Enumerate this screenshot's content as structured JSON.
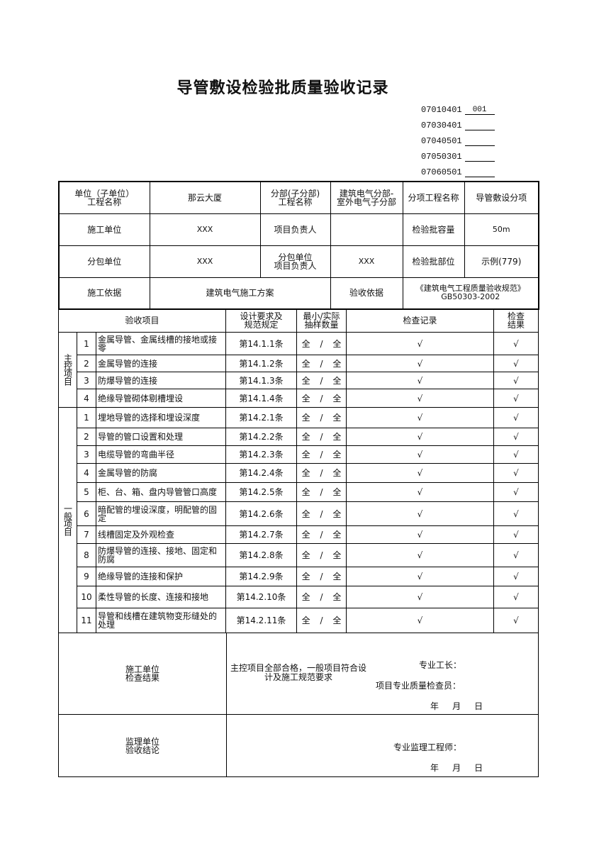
{
  "title": "导管敷设检验批质量验收记录",
  "codes": [
    {
      "code": "07010401",
      "value": "001"
    },
    {
      "code": "07030401",
      "value": ""
    },
    {
      "code": "07040501",
      "value": ""
    },
    {
      "code": "07050301",
      "value": ""
    },
    {
      "code": "07060501",
      "value": ""
    }
  ],
  "info": {
    "unit_label": "单位（子单位）\n工程名称",
    "unit_value": "那云大厦",
    "division_label": "分部(子分部)\n工程名称",
    "division_value": "建筑电气分部-\n室外电气子分部",
    "subitem_label": "分项工程名称",
    "subitem_value": "导管敷设分项",
    "contractor_label": "施工单位",
    "contractor_value": "XXX",
    "pm_label": "项目负责人",
    "pm_value": "",
    "capacity_label": "检验批容量",
    "capacity_value": "50m",
    "subcontractor_label": "分包单位",
    "subcontractor_value": "XXX",
    "sub_pm_label": "分包单位\n项目负责人",
    "sub_pm_value": "XXX",
    "location_label": "检验批部位",
    "location_value": "示例(779)",
    "basis_label": "施工依据",
    "basis_value": "建筑电气施工方案",
    "acceptance_basis_label": "验收依据",
    "acceptance_basis_value": "《建筑电气工程质量验收规范》\nGB50303-2002"
  },
  "headers": {
    "item": "验收项目",
    "design": "设计要求及\n规范规定",
    "sample": "最小/实际\n抽样数量",
    "record": "检查记录",
    "result": "检查\n结果"
  },
  "main_group": "主控项目",
  "general_group": "一般项目",
  "main_items": [
    {
      "no": "1",
      "name": "金属导管、金属线槽的接地或接零",
      "clause": "第14.1.1条",
      "sample": "全 / 全",
      "record": "√",
      "result": "√"
    },
    {
      "no": "2",
      "name": "金属导管的连接",
      "clause": "第14.1.2条",
      "sample": "全 / 全",
      "record": "√",
      "result": "√"
    },
    {
      "no": "3",
      "name": "防爆导管的连接",
      "clause": "第14.1.3条",
      "sample": "全 / 全",
      "record": "√",
      "result": "√"
    },
    {
      "no": "4",
      "name": "绝缘导管砌体剔槽埋设",
      "clause": "第14.1.4条",
      "sample": "全 / 全",
      "record": "√",
      "result": "√"
    }
  ],
  "general_items": [
    {
      "no": "1",
      "name": "埋地导管的选择和埋设深度",
      "clause": "第14.2.1条",
      "sample": "全 / 全",
      "record": "√",
      "result": "√"
    },
    {
      "no": "2",
      "name": "导管的管口设置和处理",
      "clause": "第14.2.2条",
      "sample": "全 / 全",
      "record": "√",
      "result": "√"
    },
    {
      "no": "3",
      "name": "电缆导管的弯曲半径",
      "clause": "第14.2.3条",
      "sample": "全 / 全",
      "record": "√",
      "result": "√"
    },
    {
      "no": "4",
      "name": "金属导管的防腐",
      "clause": "第14.2.4条",
      "sample": "全 / 全",
      "record": "√",
      "result": "√"
    },
    {
      "no": "5",
      "name": "柜、台、箱、盘内导管管口高度",
      "clause": "第14.2.5条",
      "sample": "全 / 全",
      "record": "√",
      "result": "√"
    },
    {
      "no": "6",
      "name": "暗配管的埋设深度，明配管的固定",
      "clause": "第14.2.6条",
      "sample": "全 / 全",
      "record": "√",
      "result": "√"
    },
    {
      "no": "7",
      "name": "线槽固定及外观检查",
      "clause": "第14.2.7条",
      "sample": "全 / 全",
      "record": "√",
      "result": "√"
    },
    {
      "no": "8",
      "name": "防爆导管的连接、接地、固定和防腐",
      "clause": "第14.2.8条",
      "sample": "全 / 全",
      "record": "√",
      "result": "√"
    },
    {
      "no": "9",
      "name": "绝缘导管的连接和保护",
      "clause": "第14.2.9条",
      "sample": "全 / 全",
      "record": "√",
      "result": "√"
    },
    {
      "no": "10",
      "name": "柔性导管的长度、连接和接地",
      "clause": "第14.2.10条",
      "sample": "全 / 全",
      "record": "√",
      "result": "√"
    },
    {
      "no": "11",
      "name": "导管和线槽在建筑物变形缝处的处理",
      "clause": "第14.2.11条",
      "sample": "全 / 全",
      "record": "√",
      "result": "√"
    }
  ],
  "contractor_check": {
    "label": "施工单位\n检查结果",
    "conclusion": "主控项目全部合格，一般项目符合设\n计及施工规范要求",
    "foreman": "专业工长：",
    "inspector": "项目专业质量检查员：",
    "date": "年     月     日"
  },
  "supervisor_check": {
    "label": "监理单位\n验收结论",
    "engineer": "专业监理工程师：",
    "date": "年     月     日"
  }
}
